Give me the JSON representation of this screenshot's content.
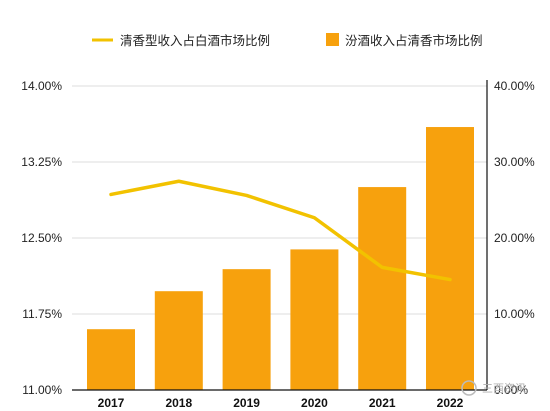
{
  "chart_data": {
    "type": "bar+line",
    "categories": [
      "2017",
      "2018",
      "2019",
      "2020",
      "2021",
      "2022"
    ],
    "series": [
      {
        "name": "清香型收入占白酒市场比例",
        "kind": "line",
        "axis": "left",
        "color": "#F2C200",
        "values": [
          12.93,
          13.06,
          12.92,
          12.7,
          12.21,
          12.09
        ]
      },
      {
        "name": "汾酒收入占清香市场比例",
        "kind": "bar",
        "axis": "right",
        "color": "#F7A10D",
        "values": [
          8.0,
          13.0,
          15.9,
          18.5,
          26.7,
          34.6
        ]
      }
    ],
    "left_axis": {
      "range": [
        11.0,
        14.0
      ],
      "ticks": [
        "11.00%",
        "11.75%",
        "12.50%",
        "13.25%",
        "14.00%"
      ]
    },
    "right_axis": {
      "range": [
        0,
        40
      ],
      "ticks": [
        "0.00%",
        "10.00%",
        "20.00%",
        "30.00%",
        "40.00%"
      ]
    },
    "grid": "horizontal",
    "legend_position": "top"
  },
  "watermark": {
    "text": "三酉资讯"
  }
}
